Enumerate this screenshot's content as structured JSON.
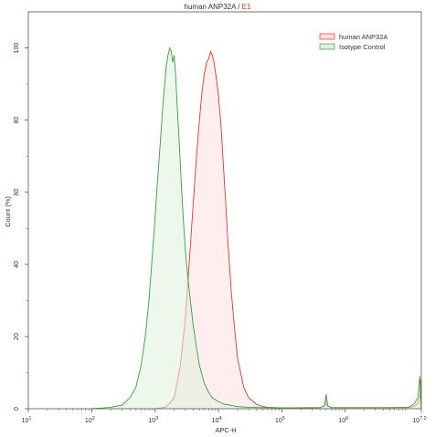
{
  "chart_data": {
    "type": "area",
    "title": {
      "main": "human ANP32A",
      "separator": " / ",
      "gate": "E1"
    },
    "title_colors": {
      "main": "#333333",
      "gate": "#e8372c"
    },
    "xlabel": "APC-H",
    "ylabel": "Count (%)",
    "xscale": "log",
    "xlim": [
      10,
      15848932
    ],
    "ylim": [
      0,
      110
    ],
    "x_ticks": [
      {
        "value": 10,
        "base": "10",
        "exp": "1"
      },
      {
        "value": 100,
        "base": "10",
        "exp": "2"
      },
      {
        "value": 1000,
        "base": "10",
        "exp": "3"
      },
      {
        "value": 10000,
        "base": "10",
        "exp": "4"
      },
      {
        "value": 100000,
        "base": "10",
        "exp": "5"
      },
      {
        "value": 1000000,
        "base": "10",
        "exp": "6"
      },
      {
        "value": 15848932,
        "base": "10",
        "exp": "7.2"
      }
    ],
    "y_ticks": [
      0,
      20,
      40,
      60,
      80,
      100
    ],
    "grid": false,
    "legend_position": "top-right",
    "series": [
      {
        "name": "human ANP32A",
        "stroke": "#e8372c",
        "fill": "#fde0e2",
        "x": [
          1000,
          1500,
          2000,
          2500,
          3000,
          3500,
          4000,
          4500,
          5000,
          5500,
          6000,
          6500,
          7000,
          7500,
          8000,
          8500,
          9000,
          10000,
          11000,
          12000,
          13000,
          14000,
          16000,
          18000,
          20000,
          25000,
          30000,
          40000,
          50000,
          60000,
          80000,
          100000,
          200000,
          400000,
          480000,
          500000,
          520000,
          600000,
          2000000,
          10000000,
          12000000,
          14000000,
          15000000,
          15500000,
          15848932
        ],
        "y": [
          0,
          0.5,
          3,
          12,
          25,
          42,
          57,
          70,
          80,
          88,
          93,
          96,
          97,
          99,
          98,
          96,
          93,
          87,
          78,
          67,
          57,
          47,
          32,
          22,
          14,
          6,
          3,
          1.2,
          0.6,
          0.4,
          0.3,
          0.2,
          0.3,
          0.3,
          0.8,
          3.5,
          0.8,
          0.3,
          0.3,
          0.3,
          0.6,
          1.5,
          3,
          8,
          0
        ]
      },
      {
        "name": "Isotype Control",
        "stroke": "#3e9b3e",
        "fill": "#dff0dc",
        "x": [
          100,
          150,
          200,
          300,
          400,
          500,
          600,
          700,
          800,
          900,
          1000,
          1100,
          1200,
          1300,
          1400,
          1500,
          1600,
          1700,
          1800,
          1900,
          2000,
          2100,
          2200,
          2400,
          2600,
          2800,
          3000,
          3300,
          3600,
          4000,
          4500,
          5000,
          6000,
          7000,
          8000,
          10000,
          12000,
          15000,
          20000,
          30000,
          50000,
          100000,
          200000,
          300000,
          400000,
          470000,
          500000,
          530000,
          600000,
          1000000,
          5000000,
          10000000,
          12000000,
          14000000,
          15000000,
          15500000,
          15848932
        ],
        "y": [
          0,
          0.2,
          0.4,
          1,
          3,
          6,
          12,
          20,
          30,
          42,
          53,
          64,
          73,
          82,
          89,
          95,
          98,
          100,
          99,
          96,
          98,
          93,
          86,
          74,
          62,
          52,
          44,
          36,
          30,
          23,
          17,
          12,
          7,
          4.5,
          3,
          2,
          1.3,
          1,
          0.6,
          0.4,
          0.3,
          0.25,
          0.2,
          0.2,
          0.3,
          0.8,
          4,
          0.8,
          0.3,
          0.3,
          0.3,
          0.4,
          1.2,
          3,
          9,
          4,
          0
        ]
      }
    ]
  }
}
